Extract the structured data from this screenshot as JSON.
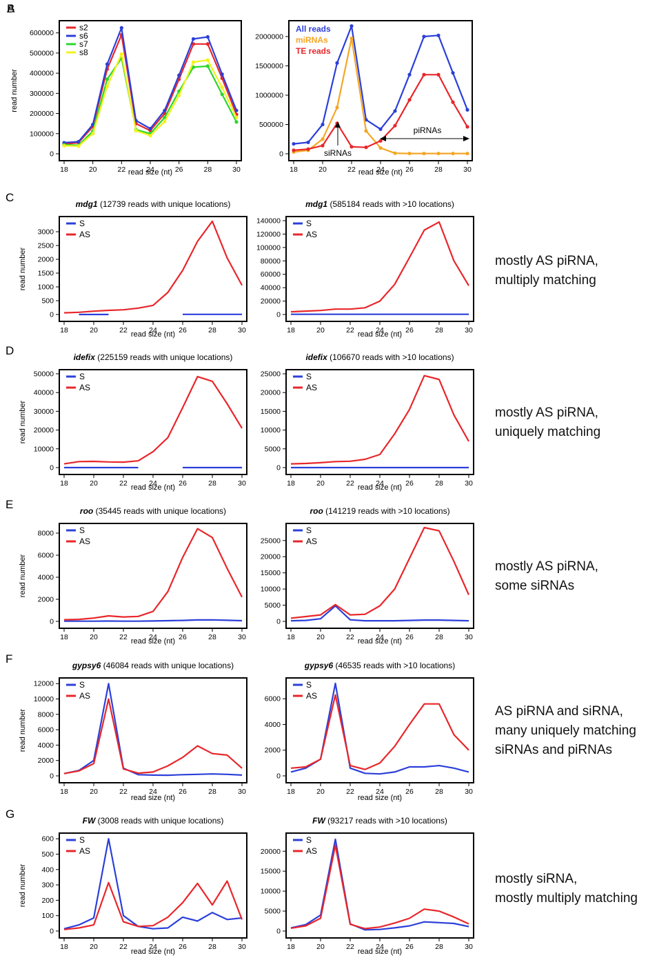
{
  "side_notes": {
    "C": [
      "mostly AS piRNA,",
      "multiply matching"
    ],
    "D": [
      "mostly AS piRNA,",
      "uniquely matching"
    ],
    "E": [
      "mostly AS piRNA,",
      "some siRNAs"
    ],
    "F": [
      "AS piRNA and siRNA,",
      "many uniquely matching",
      "siRNAs and piRNAs"
    ],
    "G": [
      "mostly siRNA,",
      "mostly multiply matching"
    ]
  },
  "annotations": {
    "sirnas": "siRNAs",
    "pirnas": "piRNAs"
  },
  "chart_data": [
    {
      "id": "A",
      "panel_label": "A",
      "type": "line",
      "title_gene": "",
      "title_rest": "",
      "ylabel": "read number",
      "xlabel": "read size (nt)",
      "xlim": [
        18,
        30
      ],
      "ylim": [
        0,
        640000
      ],
      "xticks": [
        18,
        20,
        22,
        24,
        26,
        28,
        30
      ],
      "yticks": [
        0,
        100000,
        200000,
        300000,
        400000,
        500000,
        600000
      ],
      "markers": true,
      "legend_style": "line",
      "x": [
        18,
        19,
        20,
        21,
        22,
        23,
        24,
        25,
        26,
        27,
        28,
        29,
        30
      ],
      "series": [
        {
          "name": "s2",
          "color": "#e8262a",
          "values": [
            48000,
            55000,
            135000,
            420000,
            590000,
            150000,
            115000,
            200000,
            370000,
            545000,
            545000,
            375000,
            195000
          ]
        },
        {
          "name": "s6",
          "color": "#2b3fd9",
          "values": [
            55000,
            60000,
            145000,
            445000,
            625000,
            165000,
            125000,
            215000,
            390000,
            570000,
            580000,
            395000,
            215000
          ]
        },
        {
          "name": "s7",
          "color": "#2bd62b",
          "values": [
            45000,
            42000,
            112000,
            370000,
            475000,
            120000,
            100000,
            180000,
            310000,
            430000,
            435000,
            295000,
            158000
          ]
        },
        {
          "name": "s8",
          "color": "#f2f21c",
          "values": [
            40000,
            38000,
            100000,
            335000,
            495000,
            115000,
            90000,
            160000,
            290000,
            455000,
            465000,
            330000,
            180000
          ]
        }
      ]
    },
    {
      "id": "B",
      "panel_label": "B",
      "type": "line",
      "title_gene": "",
      "title_rest": "",
      "ylabel": "",
      "xlabel": "read size (nt)",
      "xlim": [
        18,
        30
      ],
      "ylim": [
        0,
        2200000
      ],
      "xticks": [
        18,
        20,
        22,
        24,
        26,
        28,
        30
      ],
      "yticks": [
        0,
        500000,
        1000000,
        1500000,
        2000000
      ],
      "markers": true,
      "legend_style": "text",
      "x": [
        18,
        19,
        20,
        21,
        22,
        23,
        24,
        25,
        26,
        27,
        28,
        29,
        30
      ],
      "series": [
        {
          "name": "All reads",
          "color": "#2b3fd9",
          "values": [
            170000,
            195000,
            500000,
            1550000,
            2180000,
            580000,
            420000,
            730000,
            1350000,
            2000000,
            2020000,
            1380000,
            750000
          ]
        },
        {
          "name": "miRNAs",
          "color": "#f5a623",
          "values": [
            30000,
            60000,
            250000,
            790000,
            1970000,
            390000,
            100000,
            10000,
            5000,
            5000,
            5000,
            5000,
            5000
          ]
        },
        {
          "name": "TE reads",
          "color": "#e8262a",
          "values": [
            60000,
            80000,
            140000,
            520000,
            120000,
            110000,
            220000,
            480000,
            920000,
            1350000,
            1350000,
            880000,
            460000
          ]
        }
      ]
    },
    {
      "id": "C1",
      "panel_label": "C",
      "type": "line",
      "title_gene": "mdg1",
      "title_rest": " (12739 reads with unique locations)",
      "ylabel": "read number",
      "xlabel": "read size (nt)",
      "xlim": [
        18,
        30
      ],
      "ylim": [
        0,
        3400
      ],
      "xticks": [
        18,
        20,
        22,
        24,
        26,
        28,
        30
      ],
      "yticks": [
        0,
        500,
        1000,
        1500,
        2000,
        2500,
        3000
      ],
      "markers": false,
      "legend_style": "line",
      "x": [
        18,
        19,
        20,
        21,
        22,
        23,
        24,
        25,
        26,
        27,
        28,
        29,
        30
      ],
      "series": [
        {
          "name": "S",
          "color": "#2b3fd9",
          "values": [
            null,
            0,
            0,
            0,
            null,
            null,
            null,
            null,
            5,
            5,
            5,
            5,
            5
          ]
        },
        {
          "name": "AS",
          "color": "#e8262a",
          "values": [
            60,
            80,
            120,
            150,
            170,
            230,
            330,
            800,
            1600,
            2650,
            3380,
            2050,
            1060
          ]
        }
      ]
    },
    {
      "id": "C2",
      "panel_label": "",
      "type": "line",
      "title_gene": "mdg1",
      "title_rest": " (585184  reads with >10 locations)",
      "ylabel": "",
      "xlabel": "read size (nt)",
      "xlim": [
        18,
        30
      ],
      "ylim": [
        0,
        140000
      ],
      "xticks": [
        18,
        20,
        22,
        24,
        26,
        28,
        30
      ],
      "yticks": [
        0,
        20000,
        40000,
        60000,
        80000,
        100000,
        120000,
        140000
      ],
      "markers": false,
      "legend_style": "line",
      "x": [
        18,
        19,
        20,
        21,
        22,
        23,
        24,
        25,
        26,
        27,
        28,
        29,
        30
      ],
      "series": [
        {
          "name": "S",
          "color": "#2b3fd9",
          "values": [
            300,
            300,
            300,
            300,
            300,
            300,
            300,
            300,
            300,
            300,
            300,
            300,
            300
          ]
        },
        {
          "name": "AS",
          "color": "#e8262a",
          "values": [
            4000,
            5000,
            6000,
            8000,
            8000,
            10000,
            20000,
            45000,
            85000,
            126000,
            138000,
            80000,
            43000
          ]
        }
      ]
    },
    {
      "id": "D1",
      "panel_label": "D",
      "type": "line",
      "title_gene": "idefix",
      "title_rest": " (225159  reads with unique locations)",
      "ylabel": "read number",
      "xlabel": "read size (nt)",
      "xlim": [
        18,
        30
      ],
      "ylim": [
        0,
        50000
      ],
      "xticks": [
        18,
        20,
        22,
        24,
        26,
        28,
        30
      ],
      "yticks": [
        0,
        10000,
        20000,
        30000,
        40000,
        50000
      ],
      "markers": false,
      "legend_style": "line",
      "x": [
        18,
        19,
        20,
        21,
        22,
        23,
        24,
        25,
        26,
        27,
        28,
        29,
        30
      ],
      "series": [
        {
          "name": "S",
          "color": "#2b3fd9",
          "values": [
            0,
            0,
            0,
            0,
            0,
            0,
            null,
            null,
            0,
            0,
            0,
            0,
            0
          ]
        },
        {
          "name": "AS",
          "color": "#e8262a",
          "values": [
            2000,
            3200,
            3300,
            3000,
            2900,
            3600,
            8500,
            16000,
            32000,
            48500,
            46000,
            34000,
            21000
          ]
        }
      ]
    },
    {
      "id": "D2",
      "panel_label": "",
      "type": "line",
      "title_gene": "idefix",
      "title_rest": " (106670  reads with >10 locations)",
      "ylabel": "",
      "xlabel": "read size (nt)",
      "xlim": [
        18,
        30
      ],
      "ylim": [
        0,
        25000
      ],
      "xticks": [
        18,
        20,
        22,
        24,
        26,
        28,
        30
      ],
      "yticks": [
        0,
        5000,
        10000,
        15000,
        20000,
        25000
      ],
      "markers": false,
      "legend_style": "line",
      "x": [
        18,
        19,
        20,
        21,
        22,
        23,
        24,
        25,
        26,
        27,
        28,
        29,
        30
      ],
      "series": [
        {
          "name": "S",
          "color": "#2b3fd9",
          "values": [
            0,
            0,
            0,
            0,
            0,
            0,
            0,
            0,
            0,
            0,
            0,
            0,
            0
          ]
        },
        {
          "name": "AS",
          "color": "#e8262a",
          "values": [
            1000,
            1100,
            1300,
            1600,
            1700,
            2200,
            3500,
            9000,
            15500,
            24500,
            23500,
            14000,
            7000
          ]
        }
      ]
    },
    {
      "id": "E1",
      "panel_label": "E",
      "type": "line",
      "title_gene": "roo",
      "title_rest": " (35445 reads with unique locations)",
      "ylabel": "read number",
      "xlabel": "read size (nt)",
      "xlim": [
        18,
        30
      ],
      "ylim": [
        0,
        8500
      ],
      "xticks": [
        18,
        20,
        22,
        24,
        26,
        28,
        30
      ],
      "yticks": [
        0,
        2000,
        4000,
        6000,
        8000
      ],
      "markers": false,
      "legend_style": "line",
      "x": [
        18,
        19,
        20,
        21,
        22,
        23,
        24,
        25,
        26,
        27,
        28,
        29,
        30
      ],
      "series": [
        {
          "name": "S",
          "color": "#2b3fd9",
          "values": [
            20,
            20,
            20,
            30,
            20,
            20,
            40,
            60,
            90,
            130,
            140,
            100,
            60
          ]
        },
        {
          "name": "AS",
          "color": "#e8262a",
          "values": [
            150,
            180,
            300,
            500,
            400,
            450,
            900,
            2700,
            5800,
            8400,
            7600,
            4800,
            2200
          ]
        }
      ]
    },
    {
      "id": "E2",
      "panel_label": "",
      "type": "line",
      "title_gene": "roo",
      "title_rest": " (141219  reads with >10 locations)",
      "ylabel": "",
      "xlabel": "read size (nt)",
      "xlim": [
        18,
        30
      ],
      "ylim": [
        0,
        29000
      ],
      "xticks": [
        18,
        20,
        22,
        24,
        26,
        28,
        30
      ],
      "yticks": [
        0,
        5000,
        10000,
        15000,
        20000,
        25000
      ],
      "markers": false,
      "legend_style": "line",
      "x": [
        18,
        19,
        20,
        21,
        22,
        23,
        24,
        25,
        26,
        27,
        28,
        29,
        30
      ],
      "series": [
        {
          "name": "S",
          "color": "#2b3fd9",
          "values": [
            200,
            300,
            800,
            4800,
            500,
            200,
            200,
            200,
            300,
            400,
            400,
            300,
            200
          ]
        },
        {
          "name": "AS",
          "color": "#e8262a",
          "values": [
            1000,
            1500,
            2000,
            5200,
            2000,
            2200,
            4800,
            10000,
            19500,
            29000,
            28000,
            18500,
            8200
          ]
        }
      ]
    },
    {
      "id": "F1",
      "panel_label": "F",
      "type": "line",
      "title_gene": "gypsy6",
      "title_rest": " (46084 reads with unique locations)",
      "ylabel": "read number",
      "xlabel": "read size (nt)",
      "xlim": [
        18,
        30
      ],
      "ylim": [
        0,
        12200
      ],
      "xticks": [
        18,
        20,
        22,
        24,
        26,
        28,
        30
      ],
      "yticks": [
        0,
        2000,
        4000,
        6000,
        8000,
        10000,
        12000
      ],
      "markers": false,
      "legend_style": "line",
      "x": [
        18,
        19,
        20,
        21,
        22,
        23,
        24,
        25,
        26,
        27,
        28,
        29,
        30
      ],
      "series": [
        {
          "name": "S",
          "color": "#2b3fd9",
          "values": [
            300,
            700,
            2000,
            12000,
            1000,
            150,
            100,
            80,
            150,
            200,
            250,
            200,
            100
          ]
        },
        {
          "name": "AS",
          "color": "#e8262a",
          "values": [
            300,
            650,
            1600,
            10000,
            900,
            350,
            500,
            1300,
            2400,
            3900,
            2900,
            2700,
            1000
          ]
        }
      ]
    },
    {
      "id": "F2",
      "panel_label": "",
      "type": "line",
      "title_gene": "gypsy6",
      "title_rest": " (46535  reads with >10 locations)",
      "ylabel": "",
      "xlabel": "read size (nt)",
      "xlim": [
        18,
        30
      ],
      "ylim": [
        0,
        7300
      ],
      "xticks": [
        18,
        20,
        22,
        24,
        26,
        28,
        30
      ],
      "yticks": [
        0,
        2000,
        4000,
        6000
      ],
      "markers": false,
      "legend_style": "line",
      "x": [
        18,
        19,
        20,
        21,
        22,
        23,
        24,
        25,
        26,
        27,
        28,
        29,
        30
      ],
      "series": [
        {
          "name": "S",
          "color": "#2b3fd9",
          "values": [
            300,
            600,
            1300,
            7200,
            600,
            200,
            150,
            300,
            700,
            700,
            800,
            600,
            300
          ]
        },
        {
          "name": "AS",
          "color": "#e8262a",
          "values": [
            600,
            700,
            1300,
            6300,
            800,
            500,
            1000,
            2300,
            4000,
            5600,
            5600,
            3200,
            2000
          ]
        }
      ]
    },
    {
      "id": "G1",
      "panel_label": "G",
      "type": "line",
      "title_gene": "FW",
      "title_rest": " (3008  reads with unique locations)",
      "ylabel": "read number",
      "xlabel": "read size (nt)",
      "xlim": [
        18,
        30
      ],
      "ylim": [
        0,
        610
      ],
      "xticks": [
        18,
        20,
        22,
        24,
        26,
        28,
        30
      ],
      "yticks": [
        0,
        100,
        200,
        300,
        400,
        500,
        600
      ],
      "markers": false,
      "legend_style": "line",
      "x": [
        18,
        19,
        20,
        21,
        22,
        23,
        24,
        25,
        26,
        27,
        28,
        29,
        30
      ],
      "series": [
        {
          "name": "S",
          "color": "#2b3fd9",
          "values": [
            15,
            40,
            85,
            600,
            100,
            30,
            15,
            20,
            90,
            65,
            120,
            75,
            85
          ]
        },
        {
          "name": "AS",
          "color": "#e8262a",
          "values": [
            10,
            20,
            40,
            315,
            60,
            30,
            35,
            90,
            185,
            310,
            170,
            325,
            75
          ]
        }
      ]
    },
    {
      "id": "G2",
      "panel_label": "",
      "type": "line",
      "title_gene": "FW",
      "title_rest": " (93217 reads with >10 locations)",
      "ylabel": "",
      "xlabel": "read size (nt)",
      "xlim": [
        18,
        30
      ],
      "ylim": [
        0,
        23500
      ],
      "xticks": [
        18,
        20,
        22,
        24,
        26,
        28,
        30
      ],
      "yticks": [
        0,
        5000,
        10000,
        15000,
        20000
      ],
      "markers": false,
      "legend_style": "line",
      "x": [
        18,
        19,
        20,
        21,
        22,
        23,
        24,
        25,
        26,
        27,
        28,
        29,
        30
      ],
      "series": [
        {
          "name": "S",
          "color": "#2b3fd9",
          "values": [
            800,
            1600,
            4000,
            23000,
            1800,
            300,
            400,
            800,
            1300,
            2300,
            2100,
            1900,
            1100
          ]
        },
        {
          "name": "AS",
          "color": "#e8262a",
          "values": [
            700,
            1300,
            3200,
            21500,
            1700,
            600,
            1000,
            2000,
            3200,
            5500,
            5000,
            3500,
            1800
          ]
        }
      ]
    }
  ]
}
